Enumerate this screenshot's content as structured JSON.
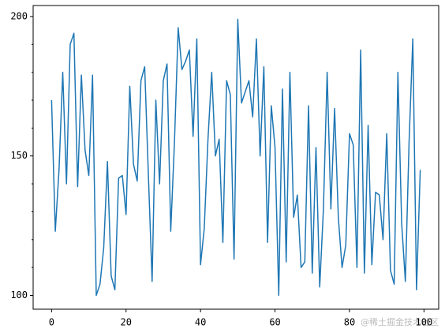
{
  "chart_data": {
    "type": "line",
    "x": [
      0,
      1,
      2,
      3,
      4,
      5,
      6,
      7,
      8,
      9,
      10,
      11,
      12,
      13,
      14,
      15,
      16,
      17,
      18,
      19,
      20,
      21,
      22,
      23,
      24,
      25,
      26,
      27,
      28,
      29,
      30,
      31,
      32,
      33,
      34,
      35,
      36,
      37,
      38,
      39,
      40,
      41,
      42,
      43,
      44,
      45,
      46,
      47,
      48,
      49,
      50,
      51,
      52,
      53,
      54,
      55,
      56,
      57,
      58,
      59,
      60,
      61,
      62,
      63,
      64,
      65,
      66,
      67,
      68,
      69,
      70,
      71,
      72,
      73,
      74,
      75,
      76,
      77,
      78,
      79,
      80,
      81,
      82,
      83,
      84,
      85,
      86,
      87,
      88,
      89,
      90,
      91,
      92,
      93,
      94,
      95,
      96,
      97,
      98,
      99
    ],
    "series": [
      {
        "color": "#1f77b4",
        "values": [
          170,
          123,
          145,
          180,
          140,
          190,
          194,
          139,
          179,
          152,
          143,
          179,
          100,
          104,
          117,
          148,
          107,
          102,
          142,
          143,
          129,
          175,
          147,
          141,
          177,
          182,
          143,
          105,
          170,
          140,
          177,
          183,
          123,
          155,
          196,
          181,
          184,
          188,
          157,
          192,
          111,
          124,
          156,
          180,
          150,
          156,
          119,
          177,
          172,
          113,
          199,
          169,
          173,
          177,
          164,
          192,
          150,
          182,
          119,
          168,
          153,
          100,
          174,
          112,
          180,
          128,
          136,
          110,
          112,
          168,
          108,
          153,
          103,
          131,
          180,
          131,
          167,
          128,
          110,
          118,
          158,
          154,
          110,
          188,
          108,
          161,
          111,
          137,
          136,
          120,
          158,
          109,
          104,
          180,
          126,
          105,
          155,
          192,
          102,
          145
        ]
      }
    ],
    "xlim": [
      -4.95,
      103.95
    ],
    "xticks": [
      0,
      20,
      40,
      60,
      80,
      100
    ],
    "ylim": [
      95.05,
      203.95
    ],
    "yticks": [
      100,
      150,
      200
    ],
    "yminorticks": [
      110,
      120,
      130,
      140,
      160,
      170,
      180,
      190
    ],
    "watermark": "@稀土掘金技术社区"
  }
}
